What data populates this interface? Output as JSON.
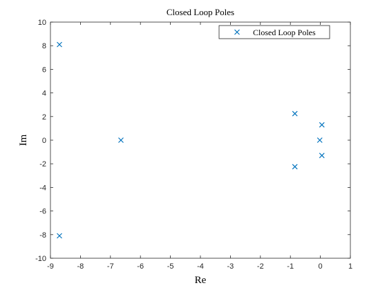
{
  "chart_data": {
    "type": "scatter",
    "title": "Closed Loop Poles",
    "xlabel": "Re",
    "ylabel": "Im",
    "xlim": [
      -9,
      1
    ],
    "ylim": [
      -10,
      10
    ],
    "xticks": [
      -9,
      -8,
      -7,
      -6,
      -5,
      -4,
      -3,
      -2,
      -1,
      0,
      1
    ],
    "yticks": [
      -10,
      -8,
      -6,
      -4,
      -2,
      0,
      2,
      4,
      6,
      8,
      10
    ],
    "grid": false,
    "legend_position": "top-right",
    "marker": "x",
    "color": "#0072BD",
    "series": [
      {
        "name": "Closed Loop Poles",
        "points": [
          {
            "x": -8.7,
            "y": 8.1
          },
          {
            "x": -8.7,
            "y": -8.1
          },
          {
            "x": -6.65,
            "y": 0
          },
          {
            "x": -0.85,
            "y": 2.25
          },
          {
            "x": -0.85,
            "y": -2.25
          },
          {
            "x": 0.05,
            "y": 1.3
          },
          {
            "x": 0.05,
            "y": -1.3
          },
          {
            "x": -0.02,
            "y": 0
          }
        ]
      }
    ]
  }
}
